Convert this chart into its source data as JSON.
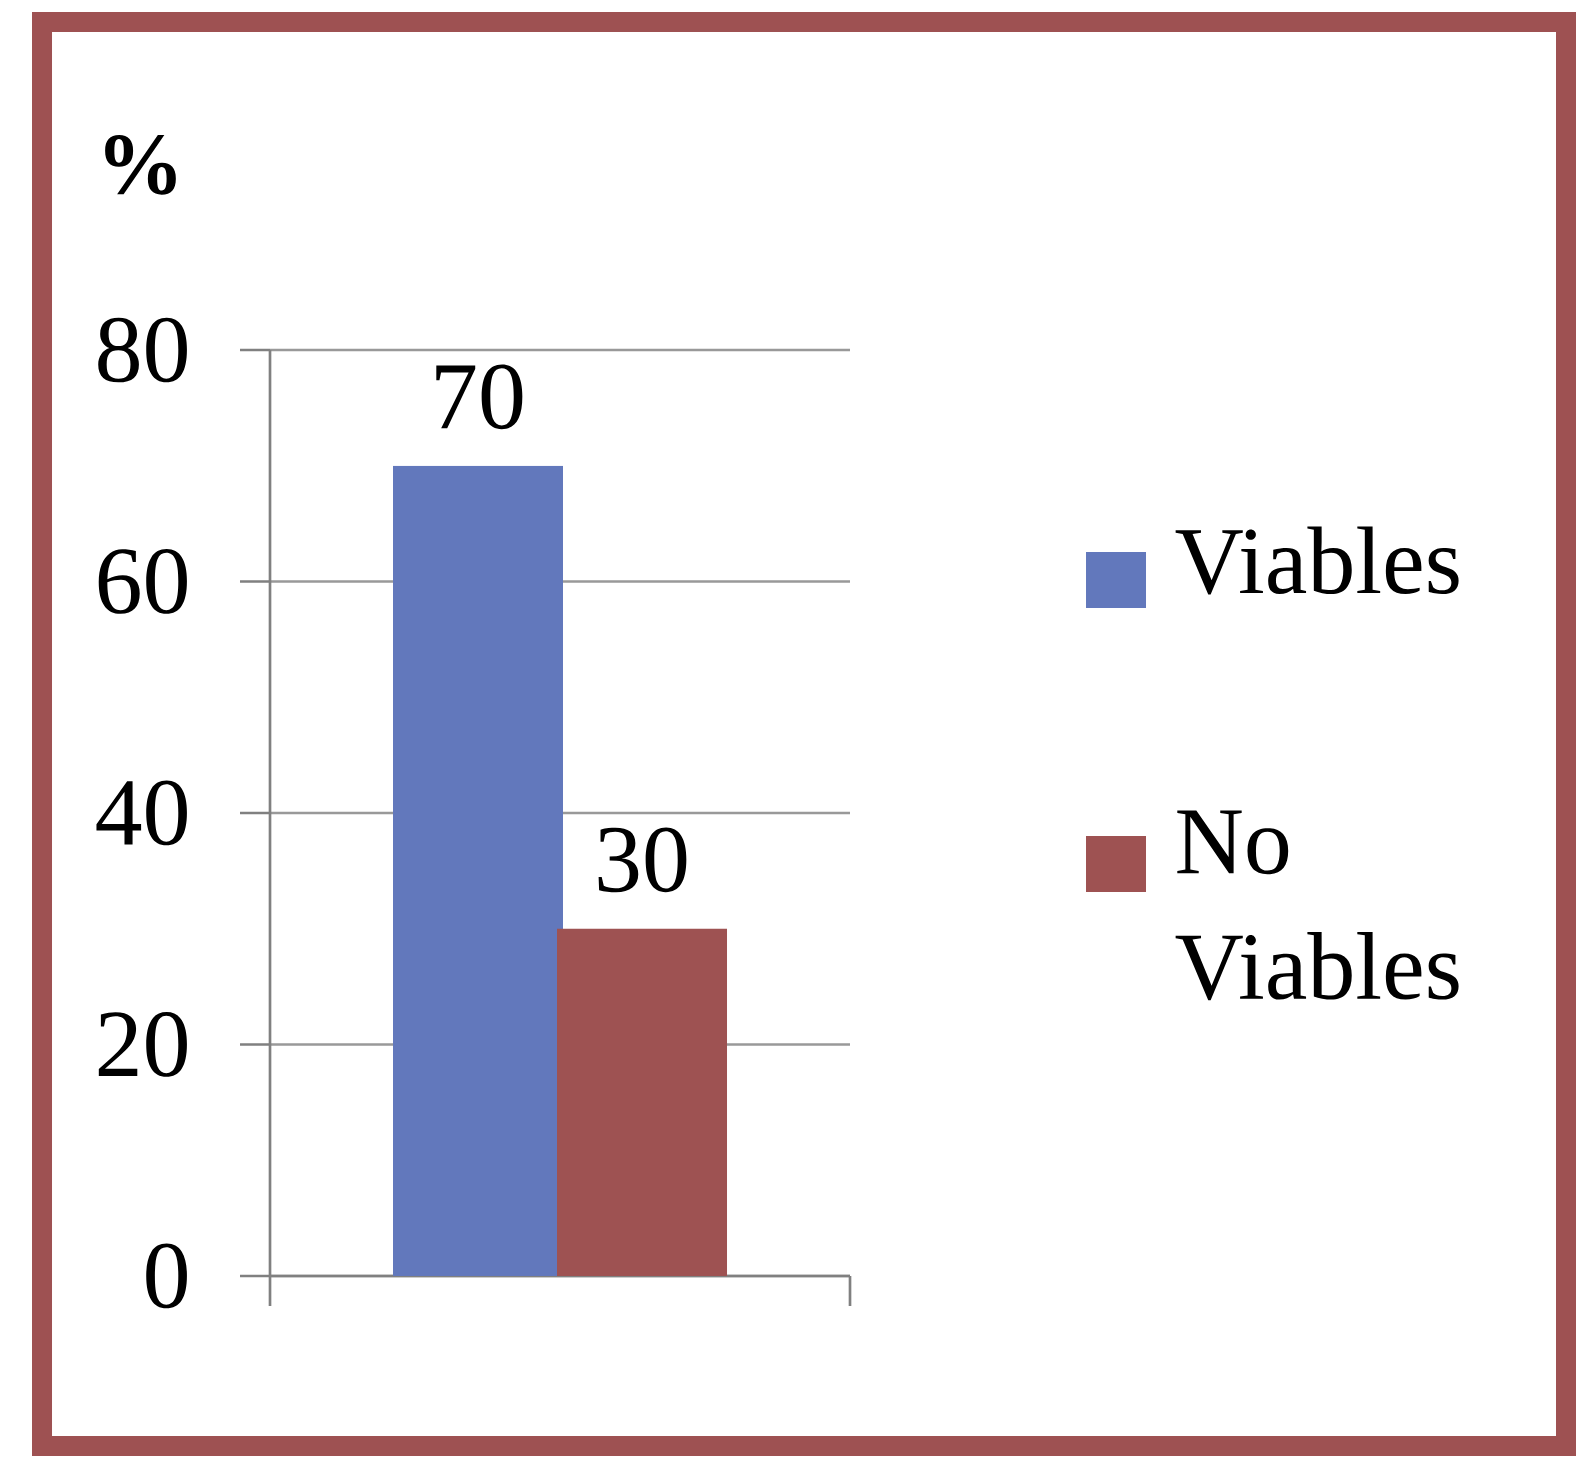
{
  "chart_data": {
    "type": "bar",
    "ylabel": "%",
    "categories": [
      null
    ],
    "series": [
      {
        "name": "Viables",
        "color": "#6278bc",
        "values": [
          70
        ]
      },
      {
        "name": "No Viables",
        "color": "#9e5252",
        "values": [
          30
        ]
      }
    ],
    "ylim": [
      0,
      80
    ],
    "yticks": [
      0,
      20,
      40,
      60,
      80
    ],
    "grid": "y",
    "legend": "right",
    "data_labels": true
  }
}
